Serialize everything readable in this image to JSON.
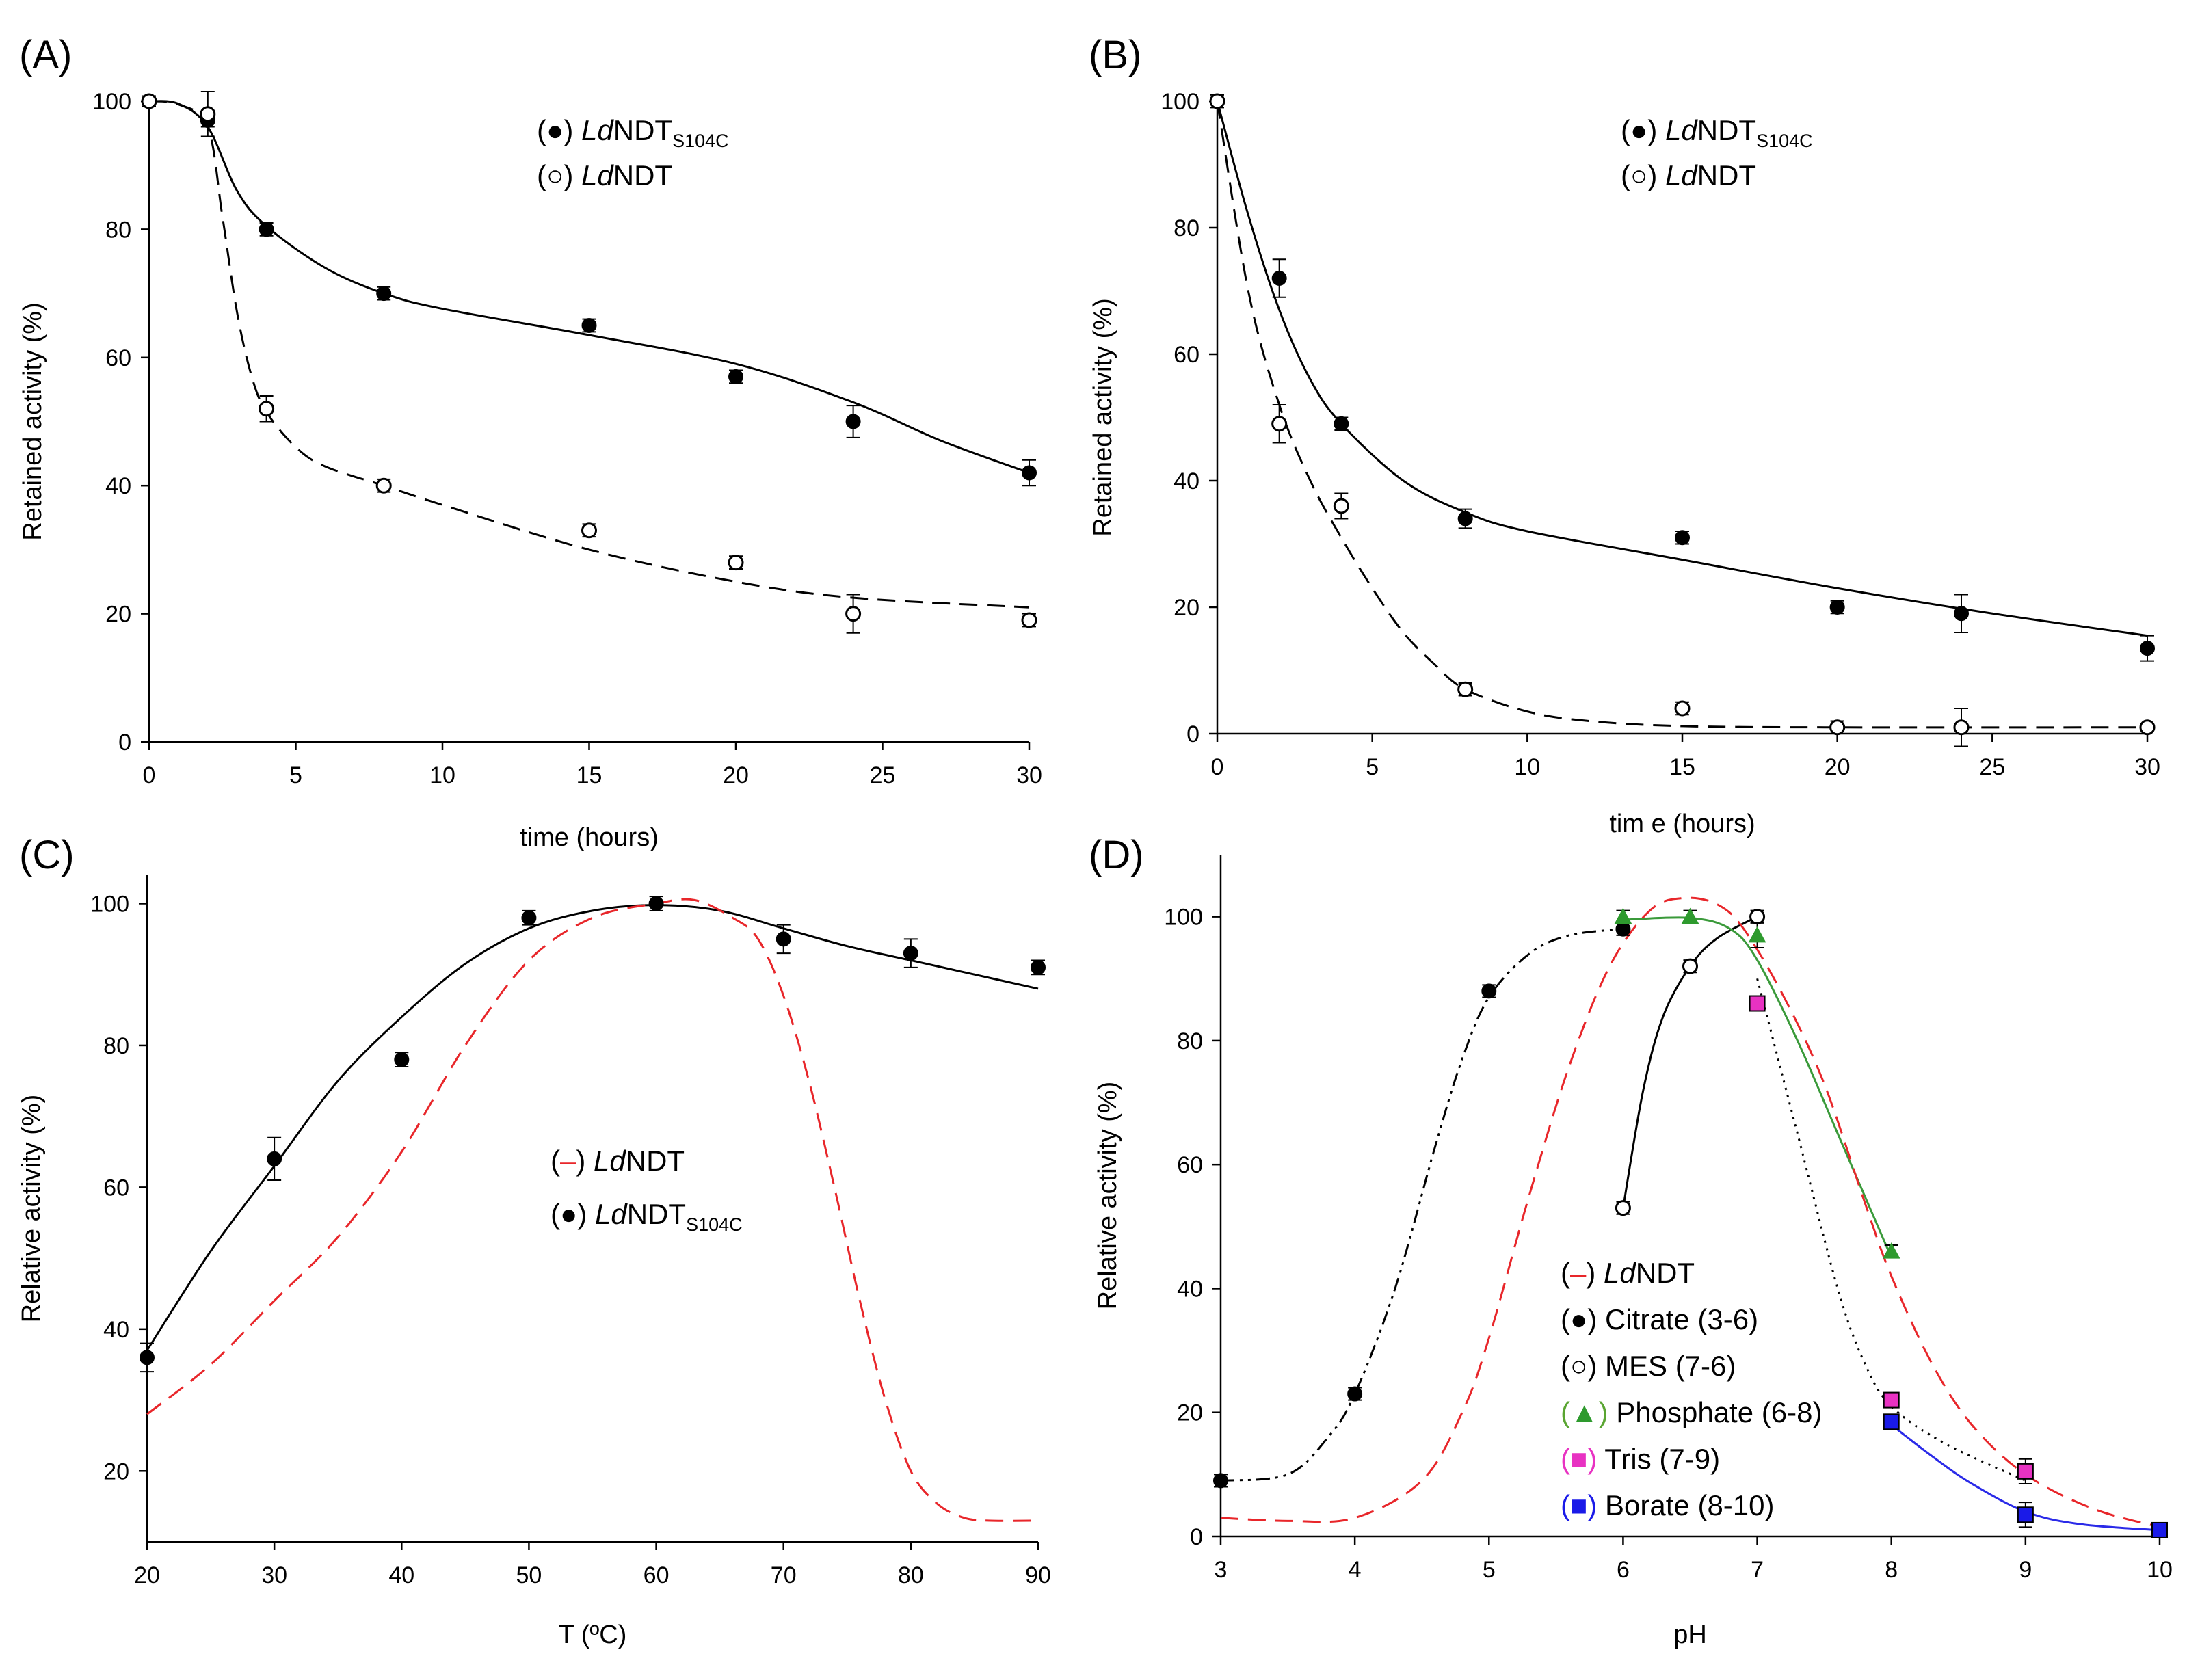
{
  "chart_data": [
    {
      "panel": "(A)",
      "type": "scatter",
      "xlabel": "time (hours)",
      "ylabel": "Retained activity (%)",
      "xlim": [
        0,
        30
      ],
      "ylim": [
        0,
        100
      ],
      "xticks": [
        0,
        5,
        10,
        15,
        20,
        25,
        30
      ],
      "yticks": [
        0,
        20,
        40,
        60,
        80,
        100
      ],
      "legend_position": "top-center",
      "legend": [
        {
          "sym": "(●)",
          "italic": "Ld",
          "text": "NDT",
          "sub": "S104C",
          "marker": "filled-circle"
        },
        {
          "sym": "(○)",
          "italic": "Ld",
          "text": "NDT",
          "sub": "",
          "marker": "open-circle"
        }
      ],
      "series": [
        {
          "marker": "filled-circle",
          "line": "solid",
          "color": "#000000",
          "x": [
            0,
            2,
            4,
            8,
            15,
            20,
            24,
            30
          ],
          "y": [
            100,
            97,
            80,
            70,
            65,
            57,
            50,
            42
          ],
          "err": [
            0.8,
            1,
            1,
            1,
            1,
            1,
            2.5,
            2
          ],
          "fit": [
            [
              0,
              100
            ],
            [
              1,
              99.6
            ],
            [
              2,
              96
            ],
            [
              3,
              86
            ],
            [
              4,
              80.5
            ],
            [
              6,
              74
            ],
            [
              8,
              70
            ],
            [
              10,
              67.6
            ],
            [
              15,
              63.5
            ],
            [
              20,
              59
            ],
            [
              24,
              53
            ],
            [
              27,
              47
            ],
            [
              30,
              42
            ]
          ]
        },
        {
          "marker": "open-circle",
          "line": "dashed",
          "color": "#000000",
          "x": [
            0,
            2,
            4,
            8,
            15,
            20,
            24,
            30
          ],
          "y": [
            100,
            98,
            52,
            40,
            33,
            28,
            20,
            19
          ],
          "err": [
            0.8,
            3.5,
            2,
            1,
            1,
            1,
            3,
            1
          ],
          "fit": [
            [
              0,
              100
            ],
            [
              1,
              99.5
            ],
            [
              2,
              96
            ],
            [
              2.5,
              82
            ],
            [
              3,
              67
            ],
            [
              3.5,
              57
            ],
            [
              4,
              51.5
            ],
            [
              5,
              46
            ],
            [
              6,
              43
            ],
            [
              8,
              40
            ],
            [
              10,
              37
            ],
            [
              15,
              30
            ],
            [
              20,
              25
            ],
            [
              24,
              22.5
            ],
            [
              30,
              21
            ]
          ]
        }
      ]
    },
    {
      "panel": "(B)",
      "type": "scatter",
      "xlabel": "tim e (hours)",
      "ylabel": "Retained activity (%)",
      "xlim": [
        0,
        30
      ],
      "ylim": [
        0,
        100
      ],
      "xticks": [
        0,
        5,
        10,
        15,
        20,
        25,
        30
      ],
      "yticks": [
        0,
        20,
        40,
        60,
        80,
        100
      ],
      "legend_position": "top-center",
      "legend": [
        {
          "sym": "(●)",
          "italic": "Ld",
          "text": "NDT",
          "sub": "S104C",
          "marker": "filled-circle"
        },
        {
          "sym": "(○)",
          "italic": "Ld",
          "text": "NDT",
          "sub": "",
          "marker": "open-circle"
        }
      ],
      "series": [
        {
          "marker": "filled-circle",
          "line": "solid",
          "color": "#000000",
          "x": [
            0,
            2,
            4,
            8,
            15,
            20,
            24,
            30
          ],
          "y": [
            100,
            72,
            49,
            34,
            31,
            20,
            19,
            13.5
          ],
          "err": [
            1,
            3,
            1,
            1.5,
            1,
            1,
            3,
            2
          ],
          "fit": [
            [
              0,
              100
            ],
            [
              1,
              82
            ],
            [
              2,
              67
            ],
            [
              3,
              56
            ],
            [
              4,
              49
            ],
            [
              6,
              40
            ],
            [
              8,
              35
            ],
            [
              10,
              32
            ],
            [
              15,
              27.5
            ],
            [
              20,
              23
            ],
            [
              25,
              19
            ],
            [
              30,
              15.5
            ]
          ]
        },
        {
          "marker": "open-circle",
          "line": "dashed",
          "color": "#000000",
          "x": [
            0,
            2,
            4,
            8,
            15,
            20,
            24,
            30
          ],
          "y": [
            100,
            49,
            36,
            7,
            4,
            1,
            1,
            1
          ],
          "err": [
            1,
            3,
            2,
            1,
            1,
            1,
            3,
            0.5
          ],
          "fit": [
            [
              0,
              100
            ],
            [
              1,
              70
            ],
            [
              2,
              52
            ],
            [
              3,
              40
            ],
            [
              4,
              31
            ],
            [
              5,
              23
            ],
            [
              6,
              16
            ],
            [
              7,
              11
            ],
            [
              8,
              7
            ],
            [
              10,
              3.5
            ],
            [
              12,
              2
            ],
            [
              15,
              1.2
            ],
            [
              20,
              1
            ],
            [
              30,
              1
            ]
          ]
        }
      ]
    },
    {
      "panel": "(C)",
      "type": "scatter",
      "xlabel": "T (ºC)",
      "ylabel": "Relative activity (%)",
      "xlim": [
        20,
        90
      ],
      "ylim": [
        10,
        104
      ],
      "xticks": [
        20,
        30,
        40,
        50,
        60,
        70,
        80,
        90
      ],
      "yticks": [
        20,
        40,
        60,
        80,
        100
      ],
      "legend_position": "center",
      "legend": [
        {
          "sym": "(–)",
          "italic": "Ld",
          "text": "NDT",
          "sub": "",
          "marker": "red-dash"
        },
        {
          "sym": "(●)",
          "italic": "Ld",
          "text": "NDT",
          "sub": "S104C",
          "marker": "filled-circle"
        }
      ],
      "series": [
        {
          "marker": "filled-circle",
          "line": "solid",
          "color": "#000000",
          "x": [
            20,
            30,
            40,
            50,
            60,
            70,
            80,
            90
          ],
          "y": [
            36,
            64,
            78,
            98,
            100,
            95,
            93,
            91
          ],
          "err": [
            2,
            3,
            1,
            1,
            1,
            2,
            2,
            1
          ],
          "fit": [
            [
              20,
              37
            ],
            [
              25,
              51
            ],
            [
              30,
              63
            ],
            [
              35,
              75
            ],
            [
              40,
              84
            ],
            [
              45,
              91.5
            ],
            [
              50,
              96.5
            ],
            [
              55,
              99
            ],
            [
              60,
              99.8
            ],
            [
              65,
              99
            ],
            [
              70,
              96.5
            ],
            [
              75,
              94
            ],
            [
              80,
              92
            ],
            [
              85,
              90
            ],
            [
              90,
              88
            ]
          ]
        },
        {
          "marker": "none",
          "line": "dashed",
          "color": "#e8262a",
          "x": [],
          "y": [],
          "err": [],
          "fit": [
            [
              20,
              28
            ],
            [
              25,
              35
            ],
            [
              30,
              44
            ],
            [
              35,
              53
            ],
            [
              40,
              65
            ],
            [
              45,
              80
            ],
            [
              50,
              92
            ],
            [
              55,
              98
            ],
            [
              60,
              100
            ],
            [
              63,
              100.5
            ],
            [
              66,
              98
            ],
            [
              68,
              95
            ],
            [
              70,
              87
            ],
            [
              72,
              75
            ],
            [
              74,
              60
            ],
            [
              76,
              44
            ],
            [
              78,
              30
            ],
            [
              80,
              20
            ],
            [
              82,
              15.5
            ],
            [
              84,
              13.5
            ],
            [
              86,
              13
            ],
            [
              90,
              13
            ]
          ]
        }
      ]
    },
    {
      "panel": "(D)",
      "type": "scatter",
      "xlabel": "pH",
      "ylabel": "Relative activity (%)",
      "xlim": [
        3,
        10
      ],
      "ylim": [
        0,
        110
      ],
      "xticks": [
        3,
        4,
        5,
        6,
        7,
        8,
        9,
        10
      ],
      "yticks": [
        0,
        20,
        40,
        60,
        80,
        100
      ],
      "legend_position": "bottom-center",
      "legend": [
        {
          "sym": "(–)",
          "italic": "Ld",
          "text": "NDT",
          "sub": "",
          "marker": "red-dash",
          "color": "#000000"
        },
        {
          "sym": "(●)",
          "italic": "",
          "text": "Citrate (3-6)",
          "sub": "",
          "marker": "filled-circle",
          "color": "#000000"
        },
        {
          "sym": "(○)",
          "italic": "",
          "text": " MES (7-6)",
          "sub": "",
          "marker": "open-circle",
          "color": "#000000"
        },
        {
          "sym": "(▲)",
          "italic": "",
          "text": "Phosphate (6-8)",
          "sub": "",
          "marker": "triangle",
          "color": "#5aa532"
        },
        {
          "sym": "(■)",
          "italic": "",
          "text": "Tris (7-9)",
          "sub": "",
          "marker": "square",
          "color": "#e832c2"
        },
        {
          "sym": "(■)",
          "italic": "",
          "text": "Borate (8-10)",
          "sub": "",
          "marker": "square",
          "color": "#1a1ae8"
        }
      ],
      "series": [
        {
          "name": "Citrate (3-6)",
          "marker": "filled-circle",
          "line": "dashdotdot",
          "color": "#000000",
          "x": [
            3,
            4,
            5,
            6
          ],
          "y": [
            9,
            23,
            88,
            98
          ],
          "err": [
            1,
            1,
            1,
            1
          ],
          "fit": [
            [
              3,
              9
            ],
            [
              3.5,
              10
            ],
            [
              3.8,
              16
            ],
            [
              4,
              23
            ],
            [
              4.3,
              40
            ],
            [
              4.6,
              63
            ],
            [
              4.8,
              77
            ],
            [
              5,
              87
            ],
            [
              5.3,
              94
            ],
            [
              5.6,
              97
            ],
            [
              6,
              98
            ]
          ]
        },
        {
          "name": "MES (7-6)",
          "marker": "open-circle",
          "line": "solid",
          "color": "#000000",
          "x": [
            6,
            6.5,
            7
          ],
          "y": [
            53,
            92,
            100
          ],
          "err": [
            1,
            1,
            1
          ],
          "fit": [
            [
              6,
              53
            ],
            [
              6.15,
              72
            ],
            [
              6.3,
              84
            ],
            [
              6.5,
              92
            ],
            [
              6.7,
              96.5
            ],
            [
              7,
              100
            ]
          ]
        },
        {
          "name": "Phosphate (6-8)",
          "marker": "triangle",
          "line": "solid",
          "color": "#3a9a3a",
          "x": [
            6,
            6.5,
            7,
            8
          ],
          "y": [
            100,
            100,
            97,
            46
          ],
          "err": [
            1,
            1,
            2,
            1
          ],
          "fit": [
            [
              6,
              99.5
            ],
            [
              6.5,
              99.8
            ],
            [
              6.8,
              98
            ],
            [
              7,
              93
            ],
            [
              7.3,
              80
            ],
            [
              7.6,
              65
            ],
            [
              8,
              45
            ]
          ]
        },
        {
          "name": "Tris (7-9)",
          "marker": "square",
          "line": "dotted",
          "color": "#000000",
          "fill": "#e832c2",
          "x": [
            7,
            8,
            9
          ],
          "y": [
            86,
            22,
            10.5
          ],
          "err": [
            1,
            1,
            2
          ],
          "fit": [
            [
              7,
              90
            ],
            [
              7.3,
              65
            ],
            [
              7.6,
              40
            ],
            [
              7.8,
              28
            ],
            [
              8,
              21
            ],
            [
              8.4,
              15
            ],
            [
              9,
              9
            ]
          ]
        },
        {
          "name": "Borate (8-10)",
          "marker": "square",
          "line": "solid",
          "color": "#2a2ae8",
          "fill": "#1a1ae8",
          "x": [
            8,
            9,
            10
          ],
          "y": [
            18.5,
            3.5,
            1
          ],
          "err": [
            1,
            2,
            0.5
          ],
          "fit": [
            [
              8,
              18
            ],
            [
              8.3,
              13
            ],
            [
              8.6,
              8.5
            ],
            [
              9,
              4
            ],
            [
              9.4,
              2
            ],
            [
              10,
              1
            ]
          ]
        },
        {
          "name": "LdNDT",
          "marker": "none",
          "line": "dashed",
          "color": "#e8262a",
          "x": [],
          "y": [],
          "err": [],
          "fit": [
            [
              3,
              3
            ],
            [
              3.5,
              2.5
            ],
            [
              4,
              3
            ],
            [
              4.5,
              9
            ],
            [
              4.8,
              20
            ],
            [
              5,
              32
            ],
            [
              5.3,
              55
            ],
            [
              5.6,
              76
            ],
            [
              5.9,
              92
            ],
            [
              6.2,
              101
            ],
            [
              6.45,
              103
            ],
            [
              6.7,
              102
            ],
            [
              6.9,
              98
            ],
            [
              7.2,
              87
            ],
            [
              7.5,
              73
            ],
            [
              7.8,
              54
            ],
            [
              8,
              42
            ],
            [
              8.3,
              28
            ],
            [
              8.6,
              18
            ],
            [
              9,
              10
            ],
            [
              9.5,
              4.5
            ],
            [
              10,
              1.5
            ]
          ]
        }
      ]
    }
  ]
}
